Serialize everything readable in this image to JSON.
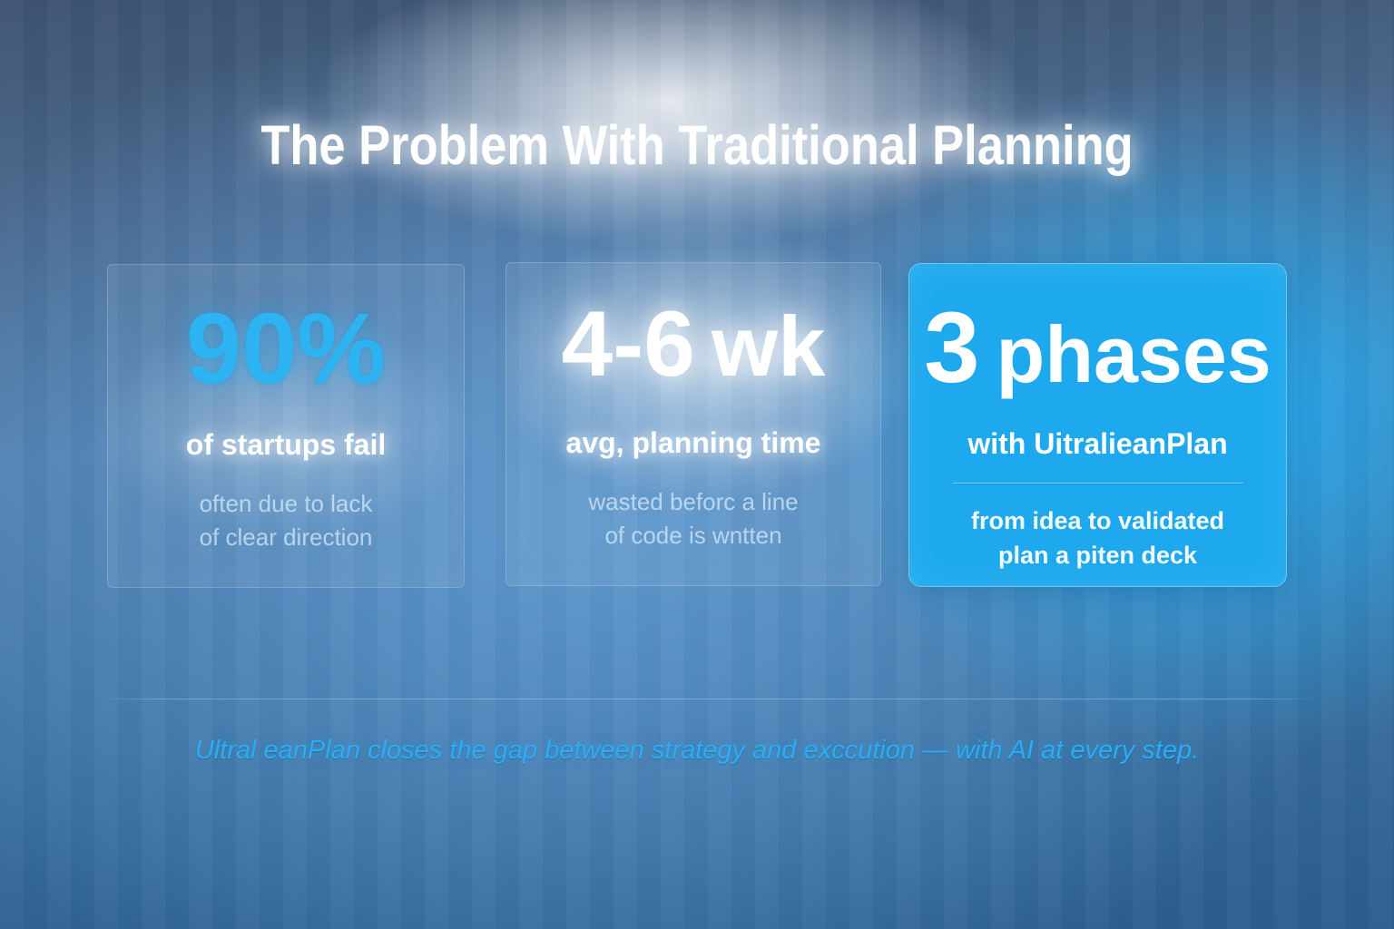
{
  "slide": {
    "title": "The Problem With Traditional Planning",
    "cards": [
      {
        "big": "90%",
        "label": "of startups fail",
        "sub1": "often due to lack",
        "sub2": "of clear direction"
      },
      {
        "big_value": "4-6",
        "big_unit": "wk",
        "label": "avg, planning time",
        "sub1": "wasted beforc a line",
        "sub2": "of code is wntten"
      },
      {
        "big_value": "3",
        "big_unit": "phases",
        "label": "with UitralieanPlan",
        "sub1": "from idea to validated",
        "sub2": "plan a piten deck"
      }
    ],
    "tagline": "Ultral eanPlan closes the gap between strategy and exccution —  with AI at every step."
  },
  "colors": {
    "accent_cyan": "#2eb3f2",
    "highlight_card_bg": "#1ea9ee",
    "tagline_blue": "#2badf4",
    "title_color": "#ffffff",
    "bg_dark_corner": "#3d536f",
    "bg_light_center": "#9cc3e4",
    "bg_bottom": "#2a5d8d"
  }
}
